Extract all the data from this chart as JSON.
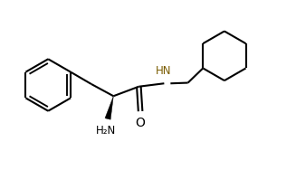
{
  "bg_color": "#ffffff",
  "line_color": "#000000",
  "hn_color": "#7a5c00",
  "line_width": 1.5,
  "figsize": [
    3.27,
    1.88
  ],
  "dpi": 100,
  "xlim": [
    0,
    10
  ],
  "ylim": [
    0,
    6
  ]
}
